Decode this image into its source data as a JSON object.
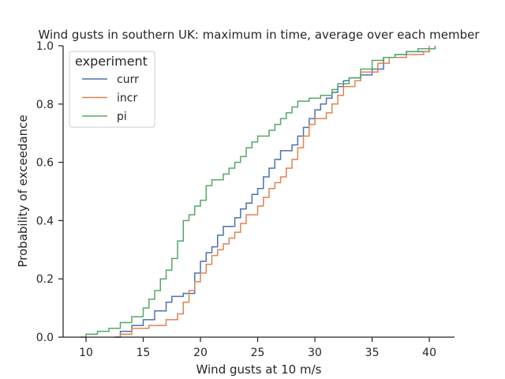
{
  "chart_data": {
    "type": "line",
    "title": "Wind gusts in southern UK: maximum in time, average over each member",
    "xlabel": "Wind gusts at 10 m/s",
    "ylabel": "Probability of exceedance",
    "xlim": [
      8.0,
      42.2
    ],
    "ylim": [
      0.0,
      1.0
    ],
    "x_ticks": [
      10,
      15,
      20,
      25,
      30,
      35,
      40
    ],
    "y_ticks": [
      0.0,
      0.2,
      0.4,
      0.6,
      0.8,
      1.0
    ],
    "x_tick_labels": [
      "10",
      "15",
      "20",
      "25",
      "30",
      "35",
      "40"
    ],
    "y_tick_labels": [
      "0.0",
      "0.2",
      "0.4",
      "0.6",
      "0.8",
      "1.0"
    ],
    "grid": false,
    "legend": {
      "title": "experiment",
      "position": "top-left"
    },
    "series": [
      {
        "name": "curr",
        "color": "#4c72b0",
        "points": [
          [
            12.5,
            0.0
          ],
          [
            13.0,
            0.02
          ],
          [
            14.0,
            0.04
          ],
          [
            15.0,
            0.06
          ],
          [
            16.0,
            0.09
          ],
          [
            17.0,
            0.12
          ],
          [
            17.5,
            0.14
          ],
          [
            18.5,
            0.15
          ],
          [
            19.5,
            0.22
          ],
          [
            20.0,
            0.26
          ],
          [
            20.5,
            0.29
          ],
          [
            21.0,
            0.31
          ],
          [
            21.5,
            0.35
          ],
          [
            22.0,
            0.38
          ],
          [
            23.0,
            0.41
          ],
          [
            23.5,
            0.44
          ],
          [
            24.0,
            0.46
          ],
          [
            24.5,
            0.49
          ],
          [
            25.0,
            0.51
          ],
          [
            25.5,
            0.55
          ],
          [
            26.0,
            0.58
          ],
          [
            26.5,
            0.61
          ],
          [
            27.0,
            0.64
          ],
          [
            28.0,
            0.66
          ],
          [
            28.5,
            0.69
          ],
          [
            29.0,
            0.72
          ],
          [
            29.5,
            0.75
          ],
          [
            30.0,
            0.78
          ],
          [
            30.5,
            0.8
          ],
          [
            31.0,
            0.82
          ],
          [
            31.5,
            0.84
          ],
          [
            32.0,
            0.86
          ],
          [
            32.5,
            0.88
          ],
          [
            33.0,
            0.89
          ],
          [
            34.0,
            0.9
          ],
          [
            35.0,
            0.92
          ],
          [
            36.0,
            0.96
          ],
          [
            37.0,
            0.97
          ],
          [
            38.0,
            0.98
          ],
          [
            40.0,
            0.99
          ],
          [
            40.5,
            1.0
          ]
        ]
      },
      {
        "name": "incr",
        "color": "#dd8452",
        "points": [
          [
            12.5,
            0.0
          ],
          [
            13.0,
            0.01
          ],
          [
            14.0,
            0.03
          ],
          [
            15.5,
            0.04
          ],
          [
            17.0,
            0.06
          ],
          [
            18.0,
            0.08
          ],
          [
            18.5,
            0.12
          ],
          [
            19.0,
            0.16
          ],
          [
            19.5,
            0.19
          ],
          [
            20.0,
            0.22
          ],
          [
            20.5,
            0.25
          ],
          [
            21.0,
            0.28
          ],
          [
            21.5,
            0.3
          ],
          [
            22.0,
            0.32
          ],
          [
            22.5,
            0.34
          ],
          [
            23.0,
            0.36
          ],
          [
            23.5,
            0.39
          ],
          [
            24.0,
            0.42
          ],
          [
            25.0,
            0.45
          ],
          [
            25.5,
            0.48
          ],
          [
            26.0,
            0.51
          ],
          [
            26.5,
            0.53
          ],
          [
            27.0,
            0.55
          ],
          [
            27.5,
            0.58
          ],
          [
            28.0,
            0.61
          ],
          [
            28.5,
            0.65
          ],
          [
            29.0,
            0.69
          ],
          [
            29.5,
            0.73
          ],
          [
            30.0,
            0.75
          ],
          [
            31.0,
            0.77
          ],
          [
            31.5,
            0.8
          ],
          [
            32.0,
            0.83
          ],
          [
            32.5,
            0.86
          ],
          [
            33.5,
            0.88
          ],
          [
            34.0,
            0.91
          ],
          [
            35.5,
            0.94
          ],
          [
            36.5,
            0.96
          ],
          [
            38.0,
            0.97
          ],
          [
            39.5,
            0.98
          ],
          [
            40.0,
            1.0
          ]
        ]
      },
      {
        "name": "pi",
        "color": "#55a868",
        "points": [
          [
            9.5,
            0.0
          ],
          [
            10.0,
            0.01
          ],
          [
            11.0,
            0.02
          ],
          [
            12.0,
            0.03
          ],
          [
            13.0,
            0.05
          ],
          [
            14.0,
            0.07
          ],
          [
            15.0,
            0.1
          ],
          [
            15.5,
            0.13
          ],
          [
            16.0,
            0.16
          ],
          [
            16.5,
            0.2
          ],
          [
            17.0,
            0.23
          ],
          [
            17.5,
            0.27
          ],
          [
            18.0,
            0.33
          ],
          [
            18.5,
            0.4
          ],
          [
            19.0,
            0.42
          ],
          [
            19.5,
            0.45
          ],
          [
            20.0,
            0.47
          ],
          [
            20.5,
            0.52
          ],
          [
            21.0,
            0.54
          ],
          [
            22.0,
            0.56
          ],
          [
            22.5,
            0.58
          ],
          [
            23.0,
            0.6
          ],
          [
            23.5,
            0.62
          ],
          [
            24.0,
            0.65
          ],
          [
            24.5,
            0.67
          ],
          [
            25.0,
            0.69
          ],
          [
            26.0,
            0.71
          ],
          [
            26.5,
            0.73
          ],
          [
            27.0,
            0.75
          ],
          [
            27.5,
            0.77
          ],
          [
            28.0,
            0.79
          ],
          [
            28.5,
            0.81
          ],
          [
            29.5,
            0.82
          ],
          [
            30.5,
            0.83
          ],
          [
            31.5,
            0.85
          ],
          [
            32.0,
            0.87
          ],
          [
            33.0,
            0.89
          ],
          [
            34.0,
            0.92
          ],
          [
            35.0,
            0.95
          ],
          [
            36.0,
            0.96
          ],
          [
            37.0,
            0.97
          ],
          [
            38.0,
            0.98
          ],
          [
            39.0,
            0.99
          ],
          [
            40.5,
            1.0
          ]
        ]
      }
    ]
  }
}
